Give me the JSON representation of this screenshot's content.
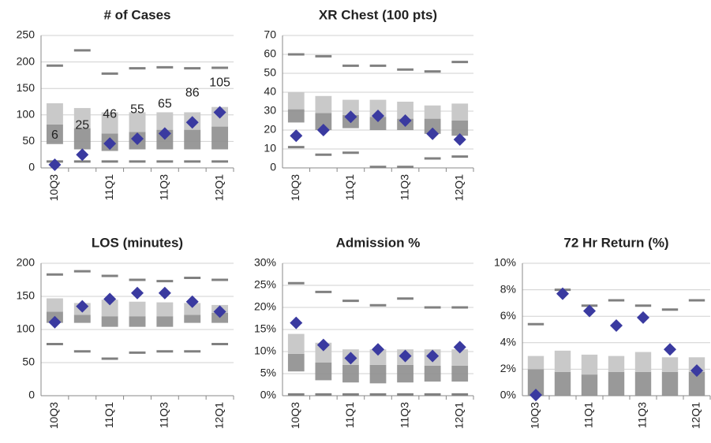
{
  "chart_data": [
    {
      "type": "range-box",
      "title": "# of Cases",
      "categories": [
        "10Q3",
        null,
        "11Q1",
        null,
        "11Q3",
        null,
        "12Q1"
      ],
      "whisker_high": [
        193,
        222,
        178,
        188,
        190,
        188,
        189
      ],
      "whisker_low": [
        12,
        12,
        12,
        12,
        12,
        12,
        12
      ],
      "q1": [
        45,
        35,
        32,
        35,
        35,
        35,
        35
      ],
      "median": [
        82,
        75,
        65,
        68,
        72,
        72,
        78
      ],
      "q3": [
        122,
        113,
        105,
        105,
        105,
        105,
        115
      ],
      "values": [
        6,
        25,
        46,
        55,
        65,
        86,
        105
      ],
      "data_labels": true,
      "ylim": [
        0,
        250
      ],
      "yticks": [
        0,
        50,
        100,
        150,
        200,
        250
      ],
      "grid": true
    },
    {
      "type": "range-box",
      "title": "XR Chest (100 pts)",
      "categories": [
        "10Q3",
        null,
        "11Q1",
        null,
        "11Q3",
        null,
        "12Q1"
      ],
      "whisker_high": [
        60,
        59,
        54,
        54,
        52,
        51,
        56
      ],
      "whisker_low": [
        11,
        7,
        8,
        0.5,
        0.5,
        5,
        6
      ],
      "q1": [
        24,
        20,
        21,
        20,
        20,
        18,
        17
      ],
      "median": [
        31,
        29,
        28,
        27,
        26,
        26,
        25
      ],
      "q3": [
        40,
        38,
        36,
        36,
        35,
        33,
        34
      ],
      "values": [
        17,
        20,
        27,
        27.5,
        25,
        18,
        15
      ],
      "ylim": [
        0,
        70
      ],
      "yticks": [
        0,
        10,
        20,
        30,
        40,
        50,
        60,
        70
      ],
      "grid": true
    },
    {
      "type": "range-box",
      "title": "LOS (minutes)",
      "categories": [
        "10Q3",
        null,
        "11Q1",
        null,
        "11Q3",
        null,
        "12Q1"
      ],
      "whisker_high": [
        183,
        188,
        181,
        175,
        173,
        178,
        175
      ],
      "whisker_low": [
        78,
        67,
        56,
        65,
        67,
        67,
        78
      ],
      "q1": [
        110,
        110,
        104,
        104,
        104,
        110,
        110
      ],
      "median": [
        127,
        122,
        120,
        120,
        120,
        122,
        125
      ],
      "q3": [
        147,
        140,
        145,
        142,
        141,
        140,
        137
      ],
      "values": [
        111,
        135,
        146,
        155,
        155,
        142,
        127
      ],
      "ylim": [
        0,
        200
      ],
      "yticks": [
        0,
        50,
        100,
        150,
        200
      ],
      "grid": true
    },
    {
      "type": "range-box",
      "title": "Admission %",
      "categories": [
        "10Q3",
        null,
        "11Q1",
        null,
        "11Q3",
        null,
        "12Q1"
      ],
      "whisker_high": [
        25.5,
        23.5,
        21.5,
        20.5,
        22,
        20,
        20
      ],
      "whisker_low": [
        0.3,
        0.3,
        0.3,
        0.3,
        0.3,
        0.3,
        0.3
      ],
      "q1": [
        5.5,
        3.5,
        3,
        2.8,
        3,
        3.2,
        3.2
      ],
      "median": [
        9.5,
        7.5,
        7,
        7,
        7,
        6.8,
        6.8
      ],
      "q3": [
        14,
        12,
        10.5,
        10.5,
        10.5,
        10.5,
        10.5
      ],
      "values": [
        16.5,
        11.5,
        8.5,
        10.5,
        9,
        9,
        11
      ],
      "ylim": [
        0,
        30
      ],
      "yticks": [
        {
          "value": 0,
          "label": "0%"
        },
        {
          "value": 5,
          "label": "5%"
        },
        {
          "value": 10,
          "label": "10%"
        },
        {
          "value": 15,
          "label": "15%"
        },
        {
          "value": 20,
          "label": "20%"
        },
        {
          "value": 25,
          "label": "25%"
        },
        {
          "value": 30,
          "label": "30%"
        }
      ],
      "grid": true
    },
    {
      "type": "range-box",
      "title": "72 Hr Return (%)",
      "categories": [
        "10Q3",
        null,
        "11Q1",
        null,
        "11Q3",
        null,
        "12Q1"
      ],
      "whisker_high": [
        5.4,
        8,
        6.8,
        7.2,
        6.8,
        6.5,
        7.2
      ],
      "q1": [
        0,
        0,
        0,
        0,
        0,
        0,
        0
      ],
      "median": [
        2,
        1.8,
        1.6,
        1.8,
        1.8,
        1.8,
        1.8
      ],
      "q3": [
        3,
        3.4,
        3.1,
        3,
        3.3,
        2.9,
        2.9
      ],
      "values": [
        0.05,
        7.7,
        6.4,
        5.3,
        5.9,
        3.5,
        1.9
      ],
      "ylim": [
        0,
        10
      ],
      "yticks": [
        {
          "value": 0,
          "label": "0%"
        },
        {
          "value": 2,
          "label": "2%"
        },
        {
          "value": 4,
          "label": "4%"
        },
        {
          "value": 6,
          "label": "6%"
        },
        {
          "value": 8,
          "label": "8%"
        },
        {
          "value": 10,
          "label": "10%"
        }
      ],
      "grid": true
    }
  ]
}
